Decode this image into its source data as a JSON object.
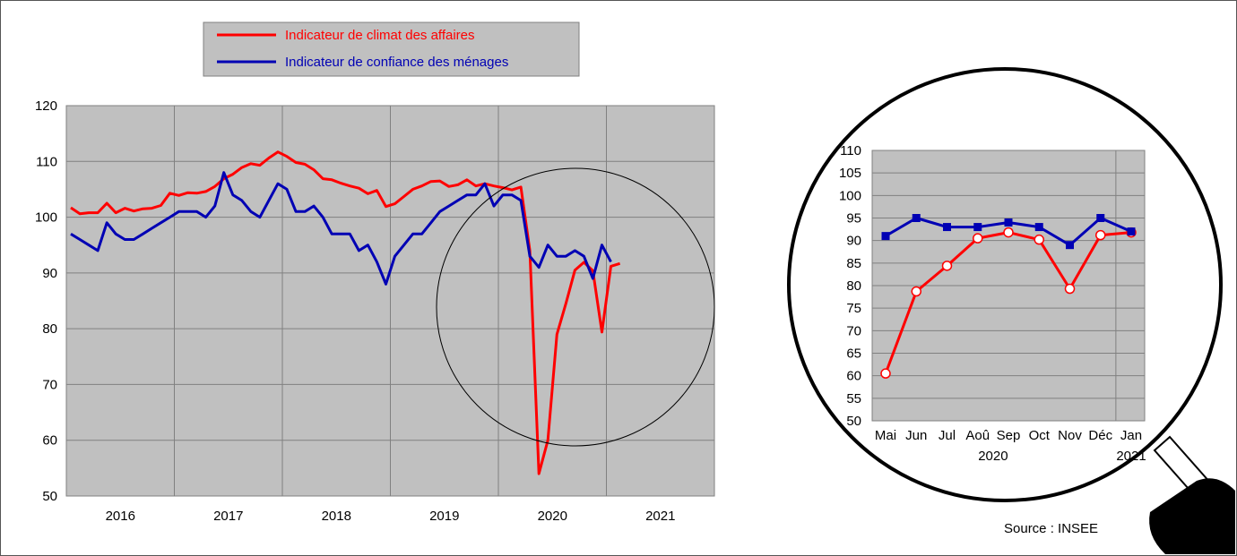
{
  "legend": {
    "business_label": "Indicateur de climat des affaires",
    "household_label": "Indicateur de confiance des ménages"
  },
  "source": "Source : INSEE",
  "colors": {
    "business": "#ff0000",
    "household": "#0000b4",
    "plot_bg": "#c0c0c0"
  },
  "chart_data": [
    {
      "type": "line",
      "title": "",
      "xlabel": "",
      "ylabel": "",
      "ylim": [
        50,
        120
      ],
      "yticks": [
        50,
        60,
        70,
        80,
        90,
        100,
        110,
        120
      ],
      "x_categories": [
        "2016",
        "2017",
        "2018",
        "2019",
        "2020",
        "2021"
      ],
      "grid": true,
      "legend_position": "top",
      "series": [
        {
          "name": "Indicateur de climat des affaires",
          "color": "#ff0000",
          "start": "2016-01",
          "values": [
            101.7,
            100.6,
            100.8,
            100.8,
            102.5,
            100.8,
            101.6,
            101.1,
            101.5,
            101.6,
            102.1,
            104.3,
            103.9,
            104.4,
            104.3,
            104.6,
            105.5,
            106.9,
            107.7,
            108.9,
            109.6,
            109.3,
            110.6,
            111.7,
            110.9,
            109.8,
            109.5,
            108.5,
            106.9,
            106.7,
            106.1,
            105.6,
            105.2,
            104.2,
            104.8,
            101.9,
            102.4,
            103.7,
            105.0,
            105.6,
            106.4,
            106.5,
            105.5,
            105.8,
            106.7,
            105.6,
            106.0,
            105.6,
            105.3,
            104.9,
            105.4,
            94.0,
            54.0,
            60.0,
            79.0,
            84.5,
            90.5,
            91.9,
            90.4,
            79.4,
            91.2,
            91.7
          ]
        },
        {
          "name": "Indicateur de confiance des ménages",
          "color": "#0000b4",
          "start": "2016-01",
          "values": [
            97,
            96,
            95,
            94,
            99,
            97,
            96,
            96,
            97,
            98,
            99,
            100,
            101,
            101,
            101,
            100,
            102,
            108,
            104,
            103,
            101,
            100,
            103,
            106,
            105,
            101,
            101,
            102,
            100,
            97,
            97,
            97,
            94,
            95,
            92,
            88,
            93,
            95,
            97,
            97,
            99,
            101,
            102,
            103,
            104,
            104,
            106,
            102,
            104,
            104,
            103,
            93,
            91,
            95,
            93,
            93,
            94,
            93,
            89,
            95,
            92
          ]
        }
      ]
    },
    {
      "type": "line",
      "title": "",
      "xlabel": "",
      "ylabel": "",
      "ylim": [
        50,
        110
      ],
      "yticks": [
        50,
        55,
        60,
        65,
        70,
        75,
        80,
        85,
        90,
        95,
        100,
        105,
        110
      ],
      "categories": [
        "Mai",
        "Jun",
        "Jul",
        "Aoû",
        "Sep",
        "Oct",
        "Nov",
        "Déc",
        "Jan"
      ],
      "year_labels": [
        "2020",
        "2021"
      ],
      "grid": true,
      "series": [
        {
          "name": "Indicateur de climat des affaires",
          "color": "#ff0000",
          "marker": "circle",
          "values": [
            60.5,
            78.7,
            84.4,
            90.5,
            91.8,
            90.2,
            79.3,
            91.2,
            91.8
          ]
        },
        {
          "name": "Indicateur de confiance des ménages",
          "color": "#0000b4",
          "marker": "square",
          "values": [
            91,
            95,
            93,
            93,
            94,
            93,
            89,
            95,
            92
          ]
        }
      ]
    }
  ]
}
